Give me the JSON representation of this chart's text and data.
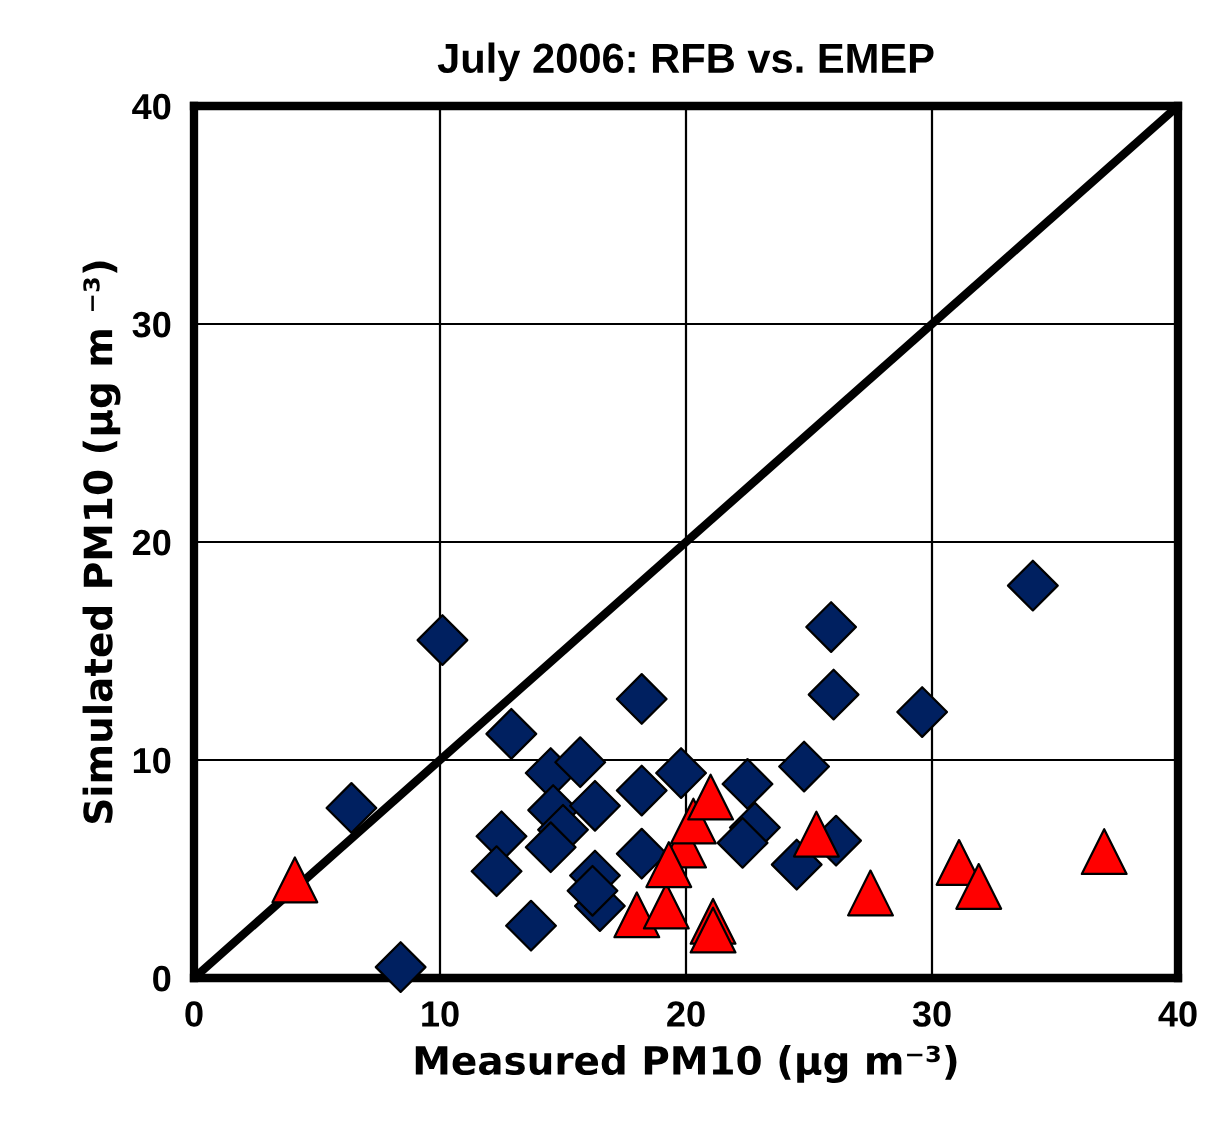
{
  "chart_data": {
    "type": "scatter",
    "title": "July 2006: RFB vs. EMEP",
    "xlabel": "Measured PM10 (µg m⁻³)",
    "ylabel": "Simulated PM10 (µg m ⁻³)",
    "xlim": [
      0,
      40
    ],
    "ylim": [
      0,
      40
    ],
    "xticks": [
      0,
      10,
      20,
      30,
      40
    ],
    "yticks": [
      0,
      10,
      20,
      30,
      40
    ],
    "grid": true,
    "legend": false,
    "series": [
      {
        "marker": "diamond",
        "color": "#002060",
        "x": [
          10.1,
          6.4,
          12.9,
          8.4,
          18.2,
          14.5,
          15.7,
          18.2,
          19.8,
          14.6,
          16.3,
          12.5,
          15.0,
          14.5,
          12.3,
          18.2,
          16.3,
          16.5,
          13.7,
          16.2,
          34.1,
          25.9,
          26.0,
          29.6,
          24.8,
          22.5,
          22.8,
          22.3,
          26.1,
          24.5
        ],
        "values": [
          15.5,
          7.8,
          11.2,
          0.5,
          12.8,
          9.4,
          9.9,
          8.6,
          9.4,
          7.7,
          7.9,
          6.5,
          6.8,
          6.0,
          4.9,
          5.7,
          4.7,
          3.3,
          2.4,
          4.0,
          18.0,
          16.1,
          13.0,
          12.2,
          9.7,
          8.9,
          6.9,
          6.2,
          6.3,
          5.2
        ]
      },
      {
        "marker": "triangle",
        "color": "#ff0000",
        "x": [
          4.1,
          18.0,
          19.2,
          19.9,
          20.3,
          21.0,
          19.3,
          21.1,
          21.1,
          25.3,
          27.5,
          31.1,
          31.9,
          37.0
        ],
        "values": [
          4.5,
          2.9,
          3.3,
          6.1,
          7.2,
          8.3,
          5.2,
          2.6,
          2.2,
          6.6,
          3.9,
          5.3,
          4.2,
          5.8
        ]
      },
      {
        "type": "line",
        "marker": "none",
        "line_style": "solid",
        "color": "#000000",
        "x": [
          0,
          40
        ],
        "values": [
          0,
          40
        ]
      }
    ]
  }
}
